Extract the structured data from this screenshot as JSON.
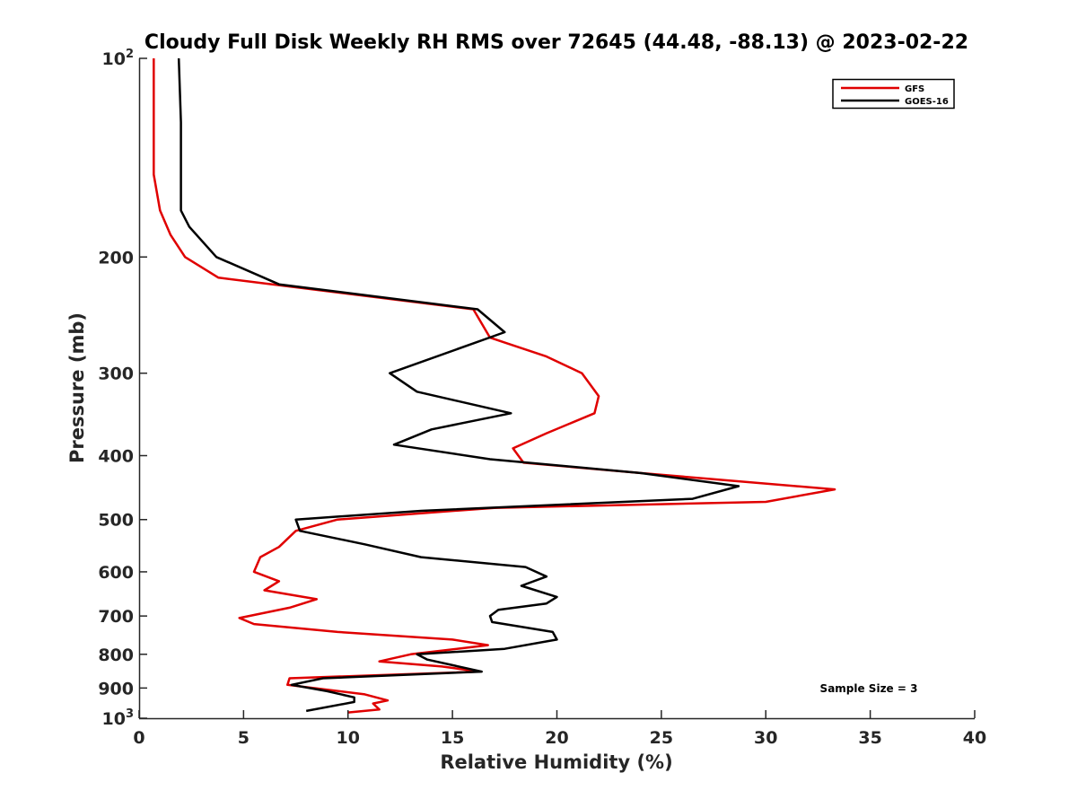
{
  "chart_data": {
    "type": "line",
    "title": "Cloudy Full Disk Weekly RH RMS over 72645 (44.48, -88.13) @ 2023-02-22",
    "xlabel": "Relative Humidity (%)",
    "ylabel": "Pressure (mb)",
    "xlim": [
      0,
      40
    ],
    "ylim": [
      100,
      1000
    ],
    "y_scale": "log",
    "y_reversed": true,
    "x_ticks": [
      "0",
      "5",
      "10",
      "15",
      "20",
      "25",
      "30",
      "35",
      "40"
    ],
    "y_ticks": [
      {
        "value": 100,
        "base": "10",
        "exp": "2"
      },
      {
        "value": 200,
        "label": "200"
      },
      {
        "value": 300,
        "label": "300"
      },
      {
        "value": 400,
        "label": "400"
      },
      {
        "value": 500,
        "label": "500"
      },
      {
        "value": 600,
        "label": "600"
      },
      {
        "value": 700,
        "label": "700"
      },
      {
        "value": 800,
        "label": "800"
      },
      {
        "value": 900,
        "label": "900"
      },
      {
        "value": 1000,
        "base": "10",
        "exp": "3"
      }
    ],
    "grid": false,
    "legend_position": "top-right",
    "annotation": "Sample Size = 3",
    "series": [
      {
        "name": "GFS",
        "color": "#e00000",
        "points": [
          [
            0.7,
            100
          ],
          [
            0.7,
            125
          ],
          [
            0.7,
            150
          ],
          [
            1.0,
            170
          ],
          [
            1.5,
            185
          ],
          [
            2.2,
            200
          ],
          [
            3.8,
            215
          ],
          [
            16.0,
            240
          ],
          [
            16.8,
            265
          ],
          [
            19.5,
            283
          ],
          [
            21.2,
            300
          ],
          [
            22.0,
            325
          ],
          [
            21.8,
            345
          ],
          [
            19.5,
            370
          ],
          [
            17.9,
            390
          ],
          [
            18.4,
            410
          ],
          [
            24.0,
            425
          ],
          [
            33.3,
            450
          ],
          [
            30.0,
            470
          ],
          [
            17.0,
            480
          ],
          [
            9.5,
            500
          ],
          [
            7.5,
            520
          ],
          [
            6.7,
            550
          ],
          [
            5.8,
            570
          ],
          [
            5.5,
            600
          ],
          [
            6.7,
            620
          ],
          [
            6.0,
            640
          ],
          [
            8.5,
            660
          ],
          [
            7.2,
            680
          ],
          [
            4.8,
            705
          ],
          [
            5.5,
            720
          ],
          [
            9.5,
            740
          ],
          [
            15.0,
            760
          ],
          [
            16.7,
            775
          ],
          [
            13.0,
            800
          ],
          [
            11.5,
            820
          ],
          [
            14.5,
            835
          ],
          [
            16.3,
            850
          ],
          [
            7.2,
            870
          ],
          [
            7.1,
            890
          ],
          [
            10.8,
            920
          ],
          [
            11.9,
            940
          ],
          [
            11.2,
            950
          ],
          [
            11.5,
            970
          ],
          [
            10.0,
            980
          ]
        ]
      },
      {
        "name": "GOES-16",
        "color": "#000000",
        "points": [
          [
            1.9,
            100
          ],
          [
            2.0,
            125
          ],
          [
            2.0,
            150
          ],
          [
            2.0,
            170
          ],
          [
            2.4,
            180
          ],
          [
            3.7,
            200
          ],
          [
            6.7,
            220
          ],
          [
            16.2,
            240
          ],
          [
            17.5,
            260
          ],
          [
            12.0,
            300
          ],
          [
            13.3,
            320
          ],
          [
            17.8,
            345
          ],
          [
            14.0,
            365
          ],
          [
            12.2,
            385
          ],
          [
            16.8,
            405
          ],
          [
            24.0,
            425
          ],
          [
            28.7,
            445
          ],
          [
            26.5,
            465
          ],
          [
            13.5,
            485
          ],
          [
            7.5,
            500
          ],
          [
            7.7,
            520
          ],
          [
            10.8,
            545
          ],
          [
            13.5,
            570
          ],
          [
            18.5,
            590
          ],
          [
            19.5,
            610
          ],
          [
            18.3,
            630
          ],
          [
            20.0,
            655
          ],
          [
            19.5,
            670
          ],
          [
            17.2,
            685
          ],
          [
            16.8,
            700
          ],
          [
            16.9,
            715
          ],
          [
            19.8,
            740
          ],
          [
            20.0,
            760
          ],
          [
            17.5,
            785
          ],
          [
            13.3,
            800
          ],
          [
            13.8,
            815
          ],
          [
            16.4,
            850
          ],
          [
            8.8,
            870
          ],
          [
            7.3,
            890
          ],
          [
            9.0,
            910
          ],
          [
            10.3,
            930
          ],
          [
            10.3,
            945
          ],
          [
            8.0,
            975
          ]
        ]
      }
    ]
  }
}
